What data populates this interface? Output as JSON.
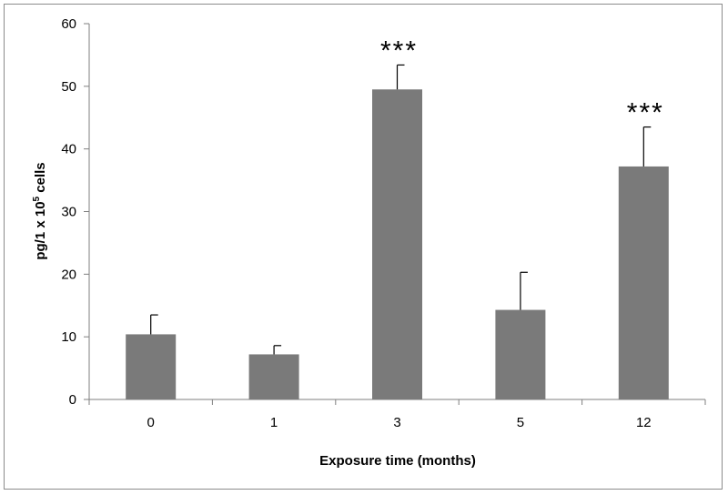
{
  "chart_data": {
    "type": "bar",
    "categories": [
      "0",
      "1",
      "3",
      "5",
      "12"
    ],
    "values": [
      10.4,
      7.2,
      49.5,
      14.3,
      37.2
    ],
    "errors": [
      3.1,
      1.4,
      3.9,
      6.0,
      6.3
    ],
    "annotations": [
      "",
      "",
      "***",
      "",
      "***"
    ],
    "ylabel_main": "pg/1 x 10",
    "ylabel_sup": "5",
    "ylabel_tail": " cells",
    "xlabel": "Exposure time (months)",
    "ylim": [
      0,
      60
    ],
    "yticks": [
      "0",
      "10",
      "20",
      "30",
      "40",
      "50",
      "60"
    ],
    "grid": false,
    "bar_color": "#7a7a7a"
  }
}
